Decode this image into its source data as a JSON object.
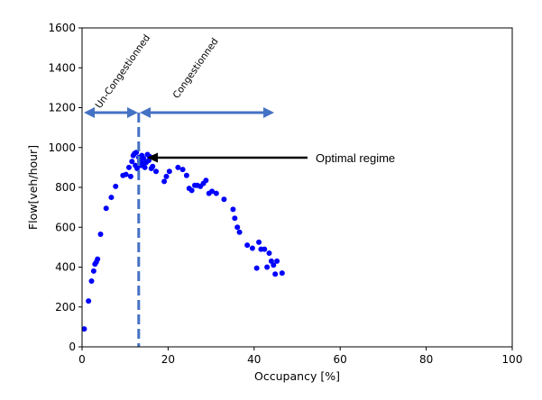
{
  "chart_data": {
    "type": "scatter",
    "xlabel": "Occupancy [%]",
    "ylabel": "Flow[veh/hour]",
    "xlim": [
      0,
      100
    ],
    "ylim": [
      0,
      1600
    ],
    "x_ticks": [
      0,
      20,
      40,
      60,
      80,
      100
    ],
    "y_ticks": [
      0,
      200,
      400,
      600,
      800,
      1000,
      1200,
      1400,
      1600
    ],
    "grid": false,
    "marker_color": "#0000ff",
    "annotation_color": "#4472c4",
    "x": [
      0.5,
      1.5,
      2.2,
      2.7,
      3.0,
      3.3,
      3.6,
      4.3,
      5.6,
      6.8,
      7.8,
      9.5,
      10.2,
      10.9,
      11.3,
      11.6,
      11.9,
      12.2,
      12.4,
      12.6,
      12.8,
      13.2,
      13.4,
      13.7,
      13.9,
      14.1,
      14.3,
      14.6,
      14.9,
      15.2,
      15.5,
      15.7,
      16.1,
      16.4,
      17.2,
      19.1,
      19.6,
      20.3,
      22.3,
      23.4,
      24.3,
      24.9,
      25.5,
      26.2,
      26.8,
      27.5,
      28.2,
      28.8,
      29.5,
      30.2,
      31.2,
      33.0,
      35.1,
      35.5,
      36.1,
      36.6,
      38.4,
      39.6,
      40.6,
      41.1,
      41.6,
      42.4,
      43.0,
      43.5,
      44.0,
      44.5,
      44.9,
      45.3,
      46.5
    ],
    "y": [
      90,
      230,
      330,
      380,
      415,
      425,
      440,
      565,
      695,
      750,
      805,
      860,
      865,
      900,
      855,
      930,
      960,
      970,
      910,
      975,
      895,
      950,
      930,
      910,
      960,
      920,
      945,
      900,
      925,
      965,
      935,
      955,
      895,
      905,
      880,
      830,
      855,
      880,
      900,
      890,
      860,
      795,
      785,
      810,
      810,
      805,
      820,
      835,
      770,
      780,
      770,
      740,
      690,
      645,
      600,
      575,
      510,
      495,
      395,
      525,
      490,
      490,
      400,
      470,
      430,
      410,
      365,
      430,
      370
    ]
  },
  "annotations": {
    "uncongested_label": "Un-Congestionned",
    "congested_label": "Congestionned",
    "optimal_label": "Optimal regime"
  }
}
